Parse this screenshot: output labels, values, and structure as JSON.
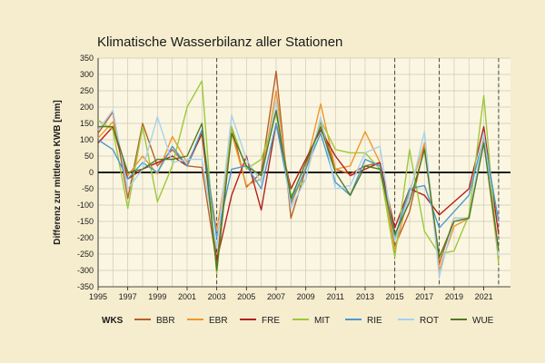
{
  "chart_data": {
    "type": "line",
    "title": "Klimatische Wasserbilanz aller Stationen",
    "ylabel": "Differenz zur mittleren KWB [mm]",
    "xlabel": "",
    "ylim": [
      -350,
      350
    ],
    "xlim": [
      1995,
      2022.8
    ],
    "yticks": [
      -350,
      -300,
      -250,
      -200,
      -150,
      -100,
      -50,
      0,
      50,
      100,
      150,
      200,
      250,
      300,
      350
    ],
    "xticks": [
      1995,
      1997,
      1999,
      2001,
      2003,
      2005,
      2007,
      2009,
      2011,
      2013,
      2015,
      2017,
      2019,
      2021
    ],
    "grid": true,
    "vlines": [
      2003,
      2015,
      2018,
      2022
    ],
    "legend_title": "WKS",
    "legend_position": "bottom",
    "x": [
      1995,
      1996,
      1997,
      1998,
      1999,
      2000,
      2001,
      2002,
      2003,
      2004,
      2005,
      2006,
      2007,
      2008,
      2009,
      2010,
      2011,
      2012,
      2013,
      2014,
      2015,
      2016,
      2017,
      2018,
      2019,
      2020,
      2021,
      2022
    ],
    "series": [
      {
        "name": "BBR",
        "color": "#b8612a",
        "values": [
          120,
          185,
          -80,
          150,
          20,
          70,
          20,
          15,
          -280,
          140,
          -45,
          0,
          310,
          -140,
          10,
          155,
          10,
          -5,
          20,
          30,
          -225,
          -120,
          80,
          -280,
          -140,
          -140,
          110,
          -240
        ]
      },
      {
        "name": "EBR",
        "color": "#f0972a",
        "values": [
          105,
          155,
          -10,
          50,
          -5,
          110,
          30,
          115,
          -180,
          120,
          -40,
          -20,
          250,
          -100,
          15,
          210,
          10,
          20,
          125,
          30,
          -240,
          -60,
          90,
          -300,
          -165,
          -140,
          105,
          -270
        ]
      },
      {
        "name": "FRE",
        "color": "#b3211e",
        "values": [
          90,
          140,
          -20,
          10,
          30,
          50,
          20,
          120,
          -270,
          -70,
          50,
          -115,
          150,
          -50,
          40,
          130,
          50,
          -10,
          10,
          30,
          -170,
          -50,
          -70,
          -130,
          -90,
          -50,
          140,
          -190
        ]
      },
      {
        "name": "MIT",
        "color": "#9cc93a",
        "values": [
          160,
          130,
          -110,
          140,
          -90,
          20,
          200,
          280,
          -310,
          140,
          10,
          40,
          180,
          -70,
          -20,
          160,
          70,
          60,
          60,
          10,
          -260,
          70,
          -180,
          -250,
          -240,
          -130,
          235,
          -280
        ]
      },
      {
        "name": "RIE",
        "color": "#4a9ad2",
        "values": [
          100,
          70,
          -20,
          30,
          0,
          80,
          20,
          130,
          -200,
          10,
          20,
          -50,
          150,
          -90,
          10,
          120,
          -30,
          -70,
          40,
          20,
          -200,
          -50,
          -40,
          -170,
          -120,
          -70,
          110,
          -150
        ]
      },
      {
        "name": "ROT",
        "color": "#a7d2ed",
        "values": [
          130,
          190,
          -50,
          10,
          170,
          30,
          40,
          40,
          -230,
          175,
          40,
          -30,
          220,
          -110,
          -20,
          170,
          -50,
          -40,
          60,
          80,
          -210,
          -70,
          125,
          -320,
          -140,
          -140,
          120,
          -255
        ]
      },
      {
        "name": "WUE",
        "color": "#4f7a22",
        "values": [
          140,
          140,
          0,
          10,
          40,
          40,
          50,
          150,
          -300,
          120,
          20,
          -10,
          190,
          -80,
          30,
          140,
          0,
          -70,
          20,
          10,
          -190,
          -90,
          70,
          -260,
          -150,
          -140,
          90,
          -240
        ]
      }
    ]
  }
}
